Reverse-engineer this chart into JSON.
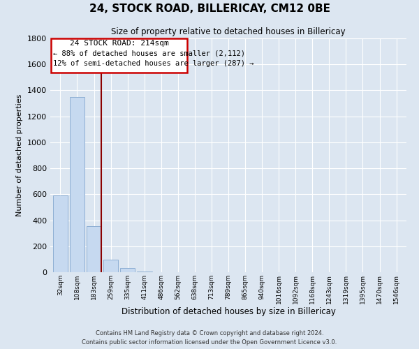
{
  "title": "24, STOCK ROAD, BILLERICAY, CM12 0BE",
  "subtitle": "Size of property relative to detached houses in Billericay",
  "xlabel": "Distribution of detached houses by size in Billericay",
  "ylabel": "Number of detached properties",
  "bar_labels": [
    "32sqm",
    "108sqm",
    "183sqm",
    "259sqm",
    "335sqm",
    "411sqm",
    "486sqm",
    "562sqm",
    "638sqm",
    "713sqm",
    "789sqm",
    "865sqm",
    "940sqm",
    "1016sqm",
    "1092sqm",
    "1168sqm",
    "1243sqm",
    "1319sqm",
    "1395sqm",
    "1470sqm",
    "1546sqm"
  ],
  "bar_values": [
    590,
    1350,
    355,
    95,
    30,
    8,
    0,
    0,
    0,
    0,
    0,
    0,
    0,
    0,
    0,
    0,
    0,
    0,
    0,
    0,
    0
  ],
  "bar_color": "#c6d9f0",
  "bar_edge_color": "#8eafd4",
  "annotation_title": "24 STOCK ROAD: 214sqm",
  "annotation_line1": "← 88% of detached houses are smaller (2,112)",
  "annotation_line2": "12% of semi-detached houses are larger (287) →",
  "vline_color": "#8b0000",
  "annotation_box_color": "#ffffff",
  "annotation_box_edge": "#cc0000",
  "ylim": [
    0,
    1800
  ],
  "yticks": [
    0,
    200,
    400,
    600,
    800,
    1000,
    1200,
    1400,
    1600,
    1800
  ],
  "footer1": "Contains HM Land Registry data © Crown copyright and database right 2024.",
  "footer2": "Contains public sector information licensed under the Open Government Licence v3.0.",
  "grid_color": "#ffffff",
  "background_color": "#dce6f1",
  "figsize": [
    6.0,
    5.0
  ],
  "dpi": 100
}
